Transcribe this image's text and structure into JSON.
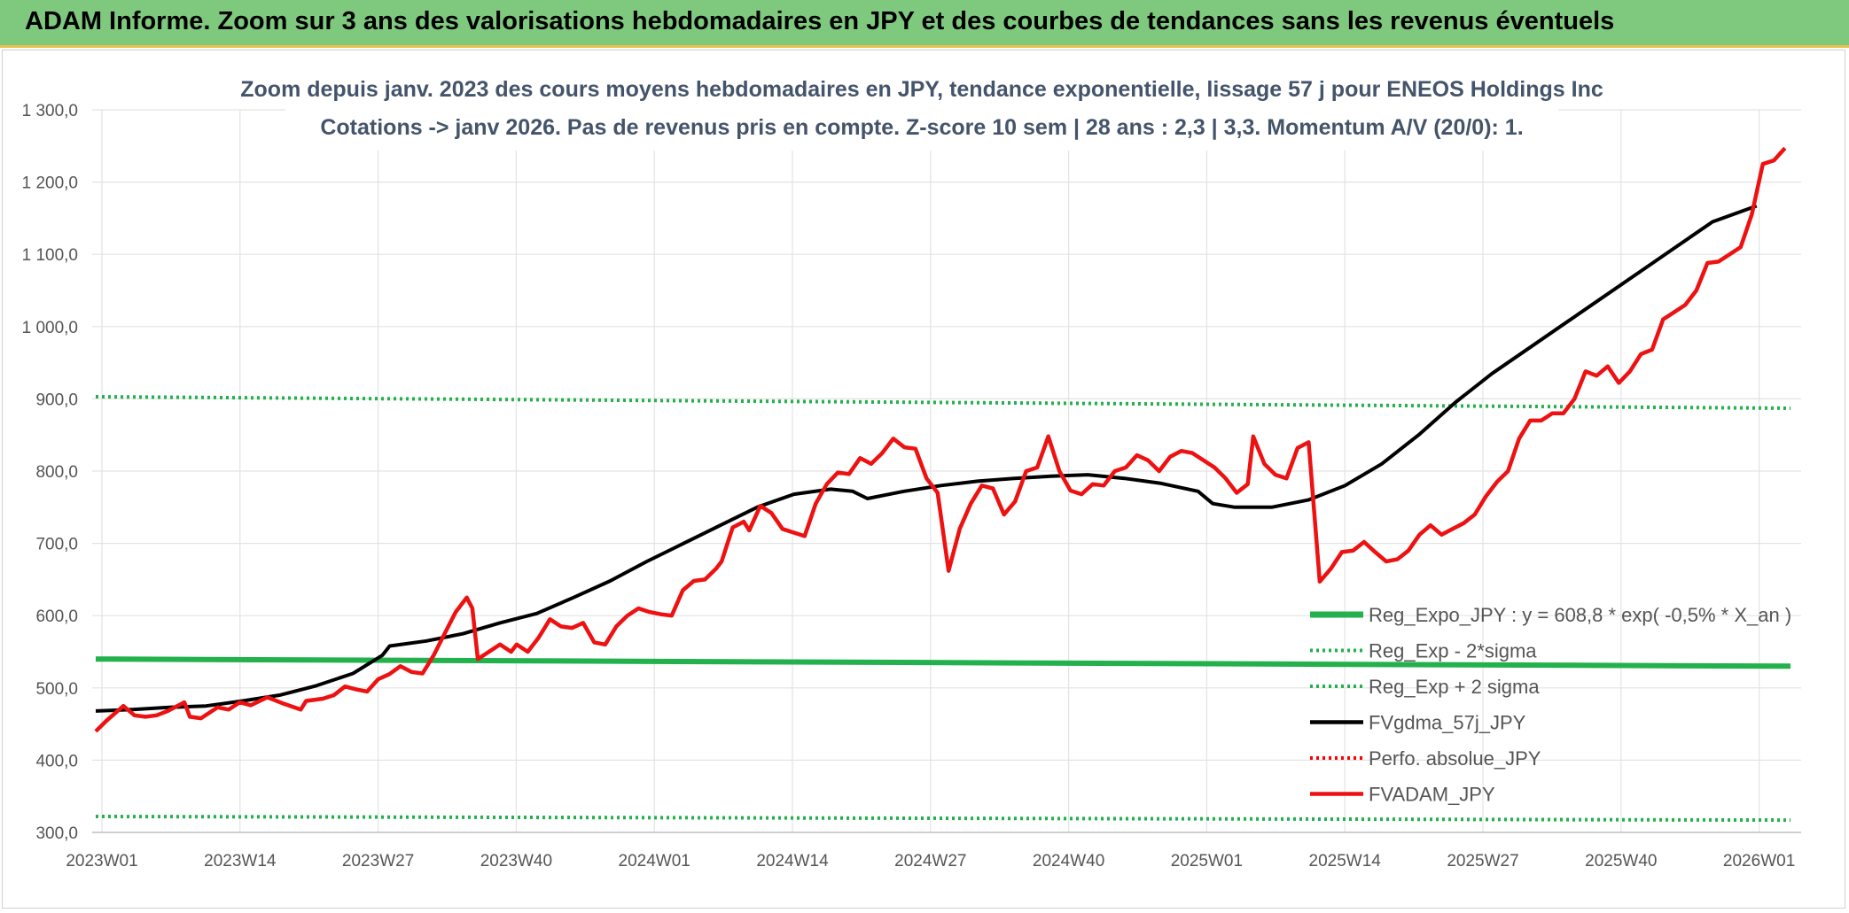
{
  "header": {
    "title": "ADAM Informe. Zoom sur 3 ans des valorisations hebdomadaires en JPY et des courbes de tendances sans les revenus éventuels"
  },
  "chart_data": {
    "type": "line",
    "title": "Zoom depuis janv. 2023 des cours moyens hebdomadaires en JPY, tendance exponentielle, lissage 57 j pour ENEOS Holdings Inc",
    "subtitle": "Cotations -> janv 2026. Pas de revenus pris en compte. Z-score 10 sem | 28 ans : 2,3 | 3,3. Momentum A/V (20/0): 1.",
    "xlabel": "",
    "ylabel": "",
    "ylim": [
      300,
      1300
    ],
    "grid": true,
    "legend_position": "right",
    "x_ticks": [
      "2023W01",
      "2023W14",
      "2023W27",
      "2023W40",
      "2024W01",
      "2024W14",
      "2024W27",
      "2024W40",
      "2025W01",
      "2025W14",
      "2025W27",
      "2025W40",
      "2026W01"
    ],
    "y_ticks": [
      "1 300,0",
      "1 200,0",
      "1 100,0",
      "1 000,0",
      "900,0",
      "800,0",
      "700,0",
      "600,0",
      "500,0",
      "400,0",
      "300,0"
    ],
    "series": [
      {
        "name": "Reg_Expo_JPY : y = 608,8 * exp( -0,5% *  X_an )",
        "color": "#22b14c",
        "style": "solid",
        "points": [
          [
            0,
            540
          ],
          [
            163,
            530
          ]
        ]
      },
      {
        "name": "Reg_Exp - 2*sigma",
        "color": "#22b14c",
        "style": "dotted",
        "points": [
          [
            0,
            322
          ],
          [
            163,
            317
          ]
        ]
      },
      {
        "name": "Reg_Exp + 2 sigma",
        "color": "#22b14c",
        "style": "dotted",
        "points": [
          [
            0,
            903
          ],
          [
            163,
            887
          ]
        ]
      },
      {
        "name": "FVgdma_57j_JPY",
        "color": "#000000",
        "style": "solid",
        "points": [
          [
            0,
            468
          ],
          [
            5,
            470
          ],
          [
            10,
            473
          ],
          [
            15,
            475
          ],
          [
            20,
            482
          ],
          [
            25,
            490
          ],
          [
            30,
            503
          ],
          [
            35,
            520
          ],
          [
            39,
            545
          ],
          [
            40,
            558
          ],
          [
            45,
            565
          ],
          [
            50,
            575
          ],
          [
            55,
            590
          ],
          [
            60,
            603
          ],
          [
            65,
            625
          ],
          [
            70,
            648
          ],
          [
            75,
            675
          ],
          [
            80,
            700
          ],
          [
            85,
            725
          ],
          [
            90,
            750
          ],
          [
            95,
            768
          ],
          [
            100,
            775
          ],
          [
            103,
            772
          ],
          [
            105,
            762
          ],
          [
            110,
            772
          ],
          [
            115,
            780
          ],
          [
            120,
            786
          ],
          [
            125,
            790
          ],
          [
            130,
            793
          ],
          [
            135,
            795
          ],
          [
            140,
            790
          ],
          [
            145,
            783
          ],
          [
            150,
            772
          ],
          [
            152,
            755
          ],
          [
            155,
            750
          ],
          [
            160,
            750
          ],
          [
            165,
            760
          ],
          [
            170,
            780
          ],
          [
            175,
            810
          ],
          [
            180,
            850
          ],
          [
            185,
            895
          ],
          [
            190,
            935
          ],
          [
            195,
            970
          ],
          [
            200,
            1005
          ],
          [
            205,
            1040
          ],
          [
            210,
            1075
          ],
          [
            215,
            1110
          ],
          [
            220,
            1145
          ],
          [
            226,
            1167
          ]
        ]
      },
      {
        "name": "Perfo. absolue_JPY",
        "color": "#ff0000",
        "style": "dotted",
        "points": []
      },
      {
        "name": "FVADAM_JPY",
        "color": "#ee1111",
        "style": "solid",
        "points": [
          [
            0,
            440
          ],
          [
            2,
            455
          ],
          [
            5,
            475
          ],
          [
            7,
            462
          ],
          [
            9,
            460
          ],
          [
            11,
            462
          ],
          [
            13,
            468
          ],
          [
            16,
            480
          ],
          [
            17,
            460
          ],
          [
            19,
            458
          ],
          [
            22,
            473
          ],
          [
            24,
            470
          ],
          [
            26,
            480
          ],
          [
            28,
            476
          ],
          [
            31,
            487
          ],
          [
            34,
            478
          ],
          [
            37,
            470
          ],
          [
            38,
            482
          ],
          [
            41,
            485
          ],
          [
            43,
            490
          ],
          [
            45,
            502
          ],
          [
            47,
            498
          ],
          [
            49,
            495
          ],
          [
            51,
            512
          ],
          [
            53,
            519
          ],
          [
            55,
            530
          ],
          [
            57,
            522
          ],
          [
            59,
            520
          ],
          [
            61,
            545
          ],
          [
            63,
            575
          ],
          [
            65,
            605
          ],
          [
            67,
            625
          ],
          [
            68,
            610
          ],
          [
            69,
            540
          ],
          [
            71,
            550
          ],
          [
            73,
            560
          ],
          [
            75,
            550
          ],
          [
            76,
            560
          ],
          [
            78,
            550
          ],
          [
            80,
            570
          ],
          [
            82,
            595
          ],
          [
            84,
            585
          ],
          [
            86,
            583
          ],
          [
            88,
            590
          ],
          [
            90,
            563
          ],
          [
            92,
            560
          ],
          [
            94,
            585
          ],
          [
            96,
            600
          ],
          [
            98,
            610
          ],
          [
            100,
            605
          ],
          [
            102,
            602
          ],
          [
            104,
            600
          ],
          [
            106,
            635
          ],
          [
            108,
            648
          ],
          [
            110,
            650
          ],
          [
            112,
            665
          ],
          [
            113,
            675
          ],
          [
            115,
            722
          ],
          [
            117,
            730
          ],
          [
            118,
            718
          ],
          [
            120,
            752
          ],
          [
            122,
            742
          ],
          [
            124,
            720
          ],
          [
            126,
            715
          ],
          [
            128,
            710
          ],
          [
            130,
            755
          ],
          [
            132,
            782
          ],
          [
            134,
            798
          ],
          [
            136,
            796
          ],
          [
            138,
            818
          ],
          [
            140,
            810
          ],
          [
            142,
            825
          ],
          [
            144,
            845
          ],
          [
            146,
            833
          ],
          [
            148,
            831
          ],
          [
            150,
            790
          ],
          [
            152,
            770
          ],
          [
            154,
            662
          ],
          [
            156,
            720
          ],
          [
            158,
            755
          ],
          [
            160,
            780
          ],
          [
            162,
            776
          ],
          [
            164,
            740
          ],
          [
            166,
            758
          ],
          [
            168,
            800
          ],
          [
            170,
            805
          ],
          [
            172,
            848
          ],
          [
            174,
            800
          ],
          [
            176,
            773
          ],
          [
            178,
            768
          ],
          [
            180,
            782
          ],
          [
            182,
            780
          ],
          [
            184,
            800
          ],
          [
            186,
            805
          ],
          [
            188,
            822
          ],
          [
            190,
            815
          ],
          [
            192,
            800
          ],
          [
            194,
            820
          ],
          [
            196,
            828
          ],
          [
            198,
            825
          ],
          [
            200,
            815
          ],
          [
            202,
            805
          ],
          [
            204,
            790
          ],
          [
            206,
            770
          ],
          [
            208,
            782
          ],
          [
            209,
            848
          ],
          [
            211,
            810
          ],
          [
            213,
            795
          ],
          [
            215,
            790
          ],
          [
            217,
            832
          ],
          [
            219,
            840
          ],
          [
            221,
            647
          ],
          [
            223,
            665
          ],
          [
            225,
            688
          ],
          [
            227,
            690
          ],
          [
            229,
            702
          ],
          [
            231,
            688
          ],
          [
            233,
            675
          ],
          [
            235,
            678
          ],
          [
            237,
            690
          ],
          [
            239,
            712
          ],
          [
            241,
            725
          ],
          [
            243,
            712
          ],
          [
            245,
            720
          ],
          [
            247,
            728
          ],
          [
            249,
            740
          ],
          [
            251,
            765
          ],
          [
            253,
            785
          ],
          [
            255,
            800
          ],
          [
            257,
            845
          ],
          [
            259,
            870
          ],
          [
            261,
            870
          ],
          [
            263,
            880
          ],
          [
            265,
            880
          ],
          [
            267,
            900
          ],
          [
            269,
            938
          ],
          [
            271,
            932
          ],
          [
            273,
            945
          ],
          [
            275,
            922
          ],
          [
            277,
            938
          ],
          [
            279,
            962
          ],
          [
            281,
            968
          ],
          [
            283,
            1010
          ],
          [
            285,
            1020
          ],
          [
            287,
            1030
          ],
          [
            289,
            1050
          ],
          [
            291,
            1088
          ],
          [
            293,
            1090
          ],
          [
            295,
            1100
          ],
          [
            297,
            1110
          ],
          [
            299,
            1155
          ],
          [
            301,
            1225
          ],
          [
            303,
            1230
          ],
          [
            305,
            1247
          ]
        ]
      }
    ]
  }
}
